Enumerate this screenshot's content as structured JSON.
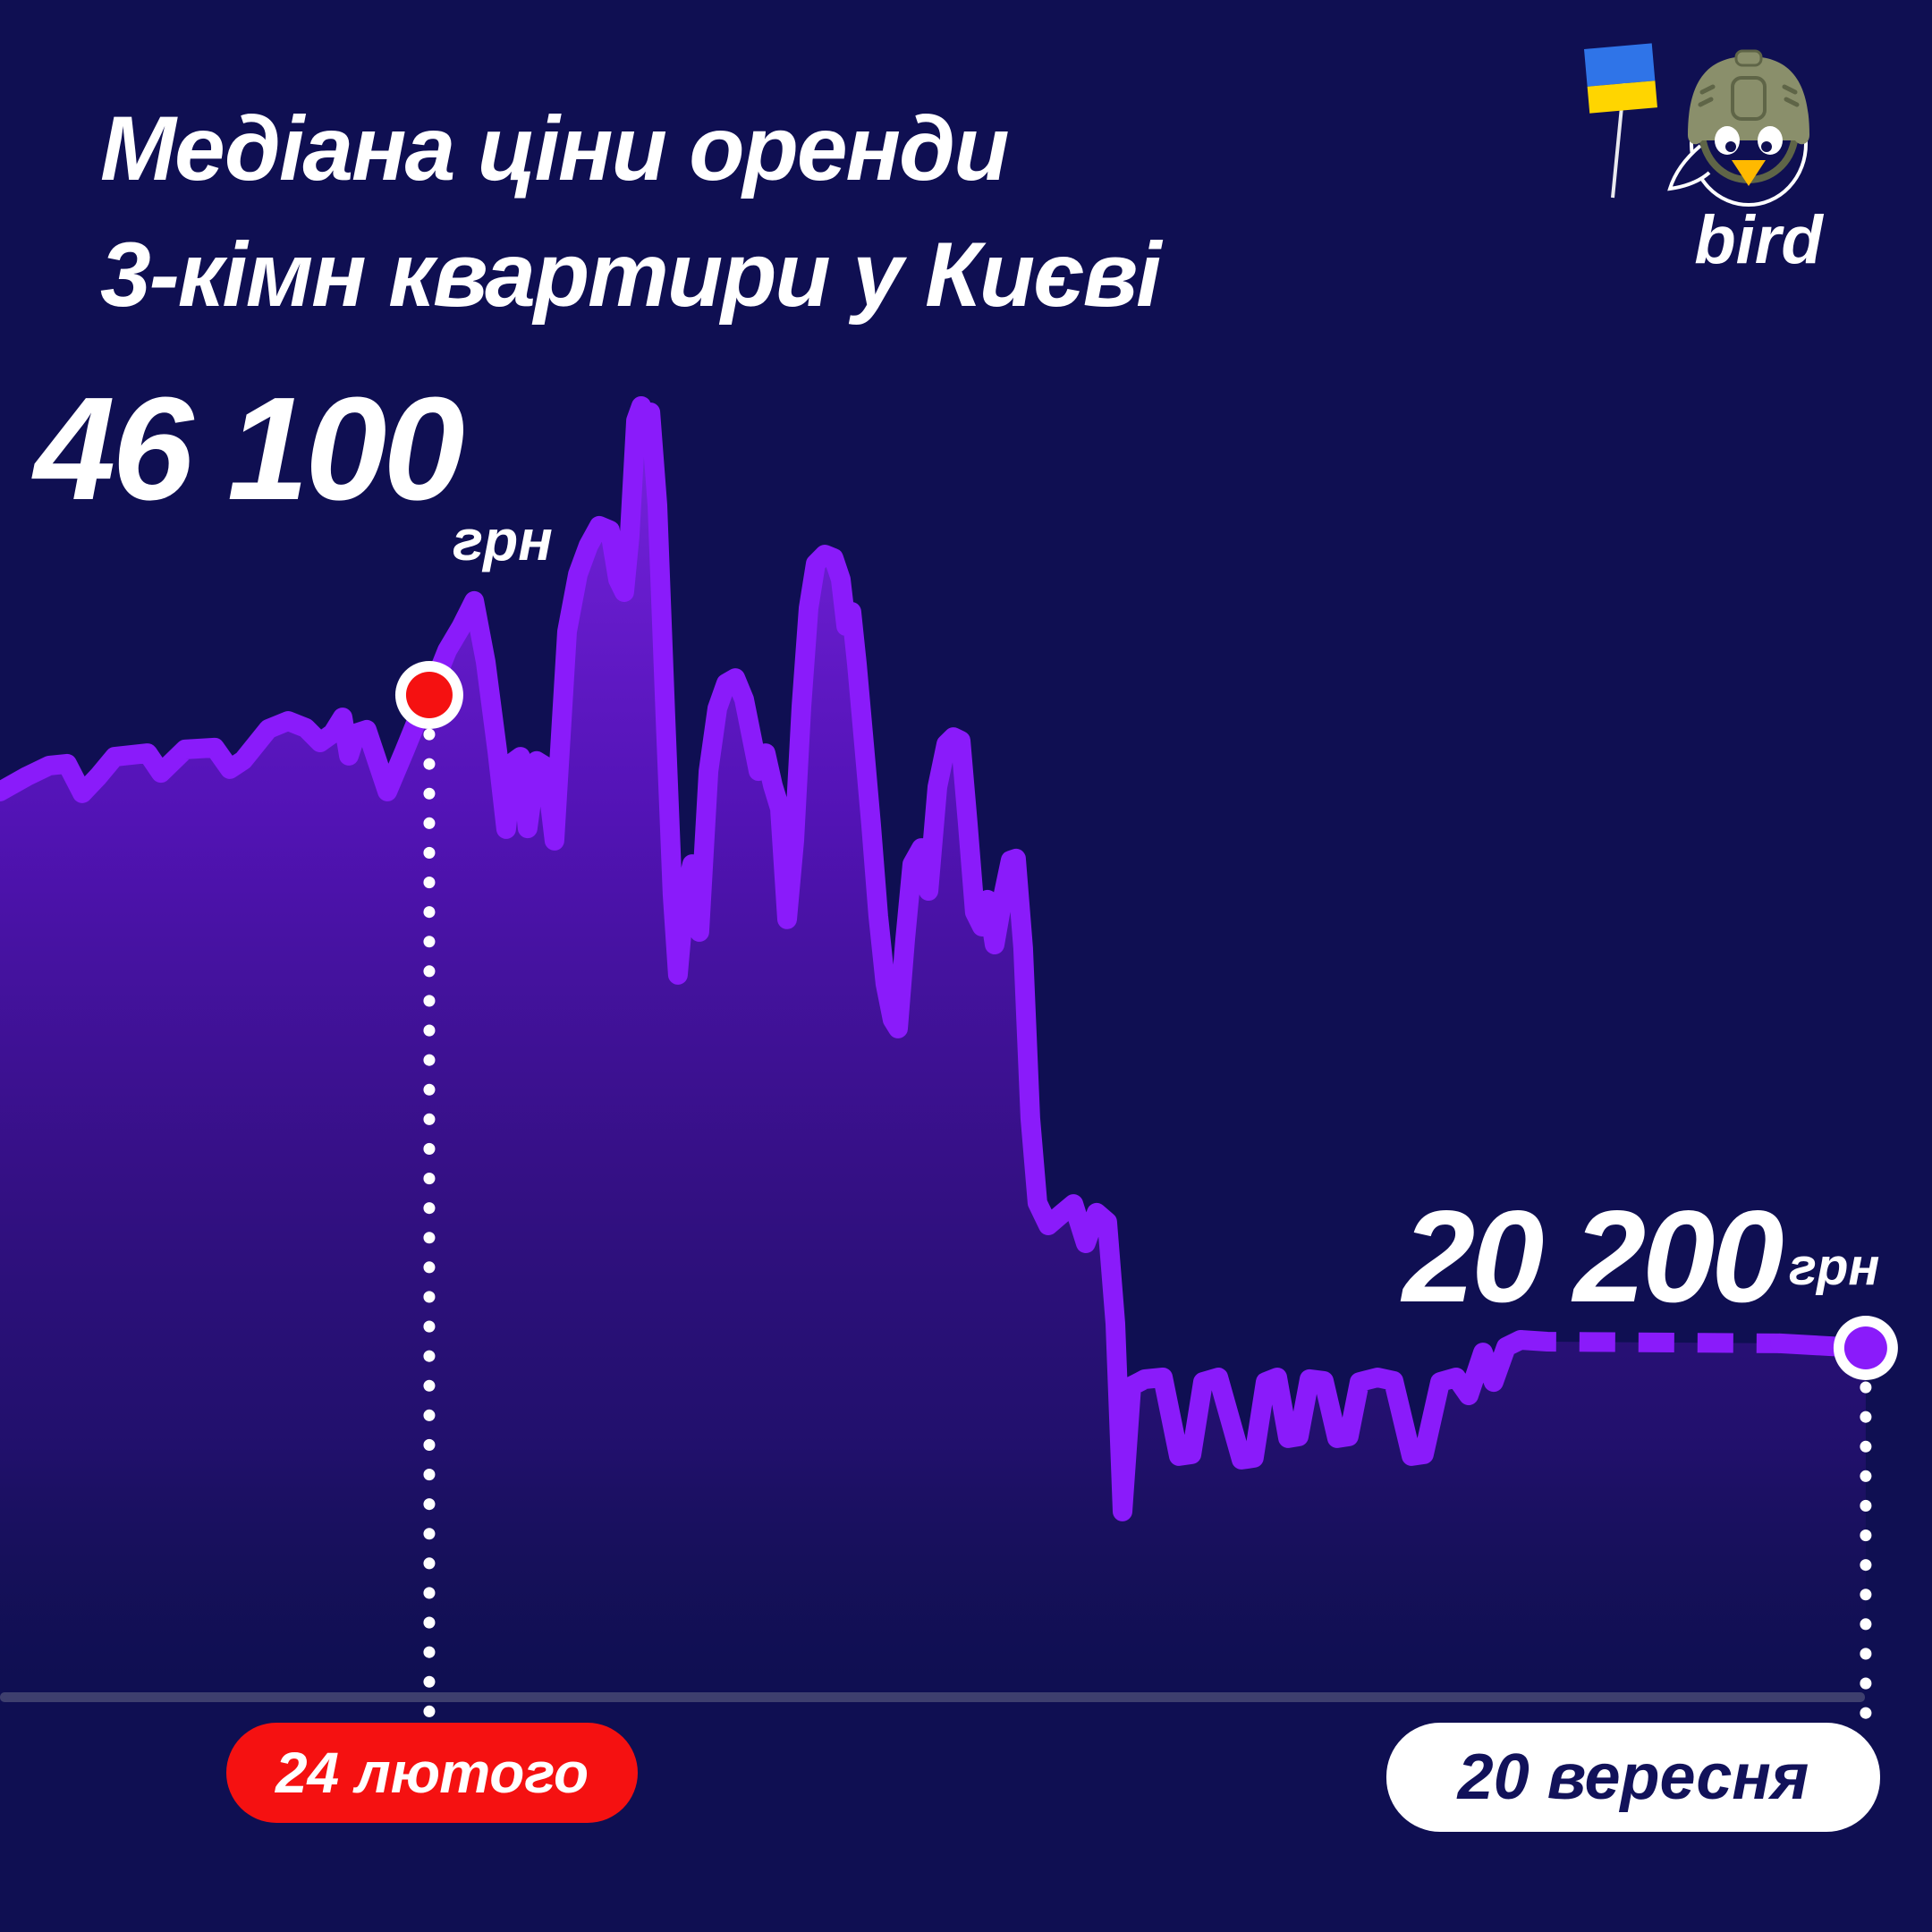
{
  "header": {
    "title_line1": "Медіана ціни оренди",
    "title_line2": "3-кімн квартири у Києві"
  },
  "logo": {
    "text": "bird"
  },
  "annotations": {
    "start": {
      "value": "46 100",
      "unit": "грн"
    },
    "end": {
      "value": "20 200",
      "unit": "грн"
    }
  },
  "x_labels": {
    "start": "24 лютого",
    "end": "20 вересня"
  },
  "colors": {
    "background": "#0f0f52",
    "line": "#8a1bfa",
    "fill_top": "#8a2bf5",
    "red": "#f51111",
    "axis": "#3e3f6e",
    "white": "#ffffff",
    "navy_text": "#12125a",
    "helmet": "#8a8f6b",
    "helmet_dark": "#5f6547",
    "flag_blue": "#2f74e8",
    "flag_yellow": "#ffd500",
    "beak": "#ffb900"
  },
  "chart_data": {
    "type": "area",
    "title": "Медіана ціни оренди 3-кімн квартири у Києві",
    "ylabel": "грн",
    "xlabel": "",
    "ylim": [
      13000,
      58000
    ],
    "grid": false,
    "legend_position": "none",
    "markers": [
      {
        "label": "24 лютого",
        "value": 46100,
        "t": 0.2222,
        "color": "#f51111"
      },
      {
        "label": "20 вересня",
        "value": 20200,
        "t": 0.9657,
        "color": "#8a1bfa"
      }
    ],
    "dashed_from_t": 0.787,
    "solid_stub_from_t": 0.9213,
    "series": [
      {
        "name": "Медіана ціни оренди, грн",
        "points": [
          [
            0.0,
            42270
          ],
          [
            0.0139,
            42870
          ],
          [
            0.0255,
            43300
          ],
          [
            0.0347,
            43370
          ],
          [
            0.0426,
            42200
          ],
          [
            0.0509,
            42870
          ],
          [
            0.0593,
            43650
          ],
          [
            0.0764,
            43790
          ],
          [
            0.0833,
            43010
          ],
          [
            0.0958,
            43940
          ],
          [
            0.1111,
            44010
          ],
          [
            0.119,
            43160
          ],
          [
            0.1259,
            43510
          ],
          [
            0.1389,
            44750
          ],
          [
            0.1491,
            45070
          ],
          [
            0.1583,
            44790
          ],
          [
            0.1657,
            44220
          ],
          [
            0.1722,
            44580
          ],
          [
            0.1773,
            45210
          ],
          [
            0.1806,
            43690
          ],
          [
            0.1843,
            44580
          ],
          [
            0.1898,
            44720
          ],
          [
            0.2005,
            42270
          ],
          [
            0.2093,
            43870
          ],
          [
            0.2157,
            45070
          ],
          [
            0.2222,
            46100
          ],
          [
            0.2315,
            47870
          ],
          [
            0.2389,
            48830
          ],
          [
            0.2454,
            49830
          ],
          [
            0.2514,
            47410
          ],
          [
            0.2574,
            43870
          ],
          [
            0.262,
            40780
          ],
          [
            0.2657,
            43440
          ],
          [
            0.2694,
            43650
          ],
          [
            0.2731,
            40810
          ],
          [
            0.2778,
            43480
          ],
          [
            0.2824,
            43260
          ],
          [
            0.287,
            40320
          ],
          [
            0.2935,
            48620
          ],
          [
            0.2991,
            50890
          ],
          [
            0.3046,
            52030
          ],
          [
            0.3102,
            52810
          ],
          [
            0.3157,
            52630
          ],
          [
            0.3199,
            50680
          ],
          [
            0.3231,
            50180
          ],
          [
            0.3259,
            52380
          ],
          [
            0.3292,
            56990
          ],
          [
            0.3319,
            57560
          ],
          [
            0.3343,
            56500
          ],
          [
            0.3366,
            57310
          ],
          [
            0.3403,
            53620
          ],
          [
            0.3444,
            45280
          ],
          [
            0.3481,
            38190
          ],
          [
            0.3509,
            35000
          ],
          [
            0.3546,
            38190
          ],
          [
            0.3583,
            39390
          ],
          [
            0.362,
            36700
          ],
          [
            0.3667,
            43080
          ],
          [
            0.3713,
            45570
          ],
          [
            0.3759,
            46560
          ],
          [
            0.3806,
            46770
          ],
          [
            0.3852,
            45920
          ],
          [
            0.3889,
            44500
          ],
          [
            0.3926,
            43080
          ],
          [
            0.3963,
            43790
          ],
          [
            0.4,
            42520
          ],
          [
            0.4037,
            41590
          ],
          [
            0.4074,
            37200
          ],
          [
            0.4111,
            40320
          ],
          [
            0.4148,
            45640
          ],
          [
            0.4185,
            49540
          ],
          [
            0.4222,
            51310
          ],
          [
            0.4269,
            51670
          ],
          [
            0.4315,
            51530
          ],
          [
            0.4352,
            50680
          ],
          [
            0.438,
            48830
          ],
          [
            0.4407,
            49400
          ],
          [
            0.4435,
            47340
          ],
          [
            0.4472,
            44150
          ],
          [
            0.4509,
            40960
          ],
          [
            0.4546,
            37340
          ],
          [
            0.4583,
            34640
          ],
          [
            0.462,
            33220
          ],
          [
            0.4648,
            32870
          ],
          [
            0.4685,
            36410
          ],
          [
            0.4722,
            39390
          ],
          [
            0.4769,
            40030
          ],
          [
            0.4806,
            38330
          ],
          [
            0.4852,
            42450
          ],
          [
            0.4898,
            44150
          ],
          [
            0.4935,
            44430
          ],
          [
            0.4972,
            44290
          ],
          [
            0.5009,
            41030
          ],
          [
            0.5046,
            37480
          ],
          [
            0.5083,
            36910
          ],
          [
            0.5111,
            37980
          ],
          [
            0.5148,
            36200
          ],
          [
            0.5194,
            38190
          ],
          [
            0.5231,
            39540
          ],
          [
            0.5259,
            39610
          ],
          [
            0.5296,
            36060
          ],
          [
            0.5333,
            29320
          ],
          [
            0.537,
            25950
          ],
          [
            0.5426,
            25060
          ],
          [
            0.5491,
            25490
          ],
          [
            0.5556,
            25910
          ],
          [
            0.562,
            24350
          ],
          [
            0.5676,
            25560
          ],
          [
            0.5731,
            25200
          ],
          [
            0.5773,
            21160
          ],
          [
            0.581,
            13710
          ],
          [
            0.5856,
            18680
          ],
          [
            0.5926,
            18960
          ],
          [
            0.6019,
            19030
          ],
          [
            0.6102,
            15910
          ],
          [
            0.6167,
            15980
          ],
          [
            0.6227,
            18850
          ],
          [
            0.6306,
            19030
          ],
          [
            0.6426,
            15770
          ],
          [
            0.649,
            15840
          ],
          [
            0.6551,
            18850
          ],
          [
            0.6611,
            19030
          ],
          [
            0.6667,
            16620
          ],
          [
            0.6722,
            16690
          ],
          [
            0.6778,
            18960
          ],
          [
            0.6852,
            18890
          ],
          [
            0.6921,
            16620
          ],
          [
            0.6981,
            16690
          ],
          [
            0.7037,
            18850
          ],
          [
            0.713,
            19030
          ],
          [
            0.7213,
            18890
          ],
          [
            0.7306,
            15910
          ],
          [
            0.737,
            15980
          ],
          [
            0.7454,
            18850
          ],
          [
            0.7537,
            19030
          ],
          [
            0.7602,
            18320
          ],
          [
            0.7676,
            20020
          ],
          [
            0.7731,
            18850
          ],
          [
            0.7796,
            20240
          ],
          [
            0.787,
            20520
          ],
          [
            0.8009,
            20450
          ],
          [
            0.9213,
            20380
          ],
          [
            0.9519,
            20250
          ],
          [
            0.9657,
            20200
          ]
        ]
      }
    ]
  }
}
